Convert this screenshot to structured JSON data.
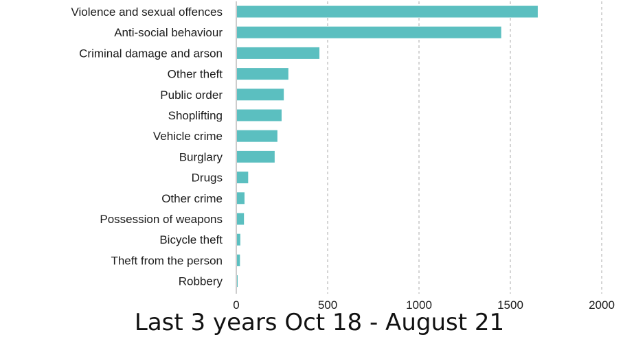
{
  "chart_data": {
    "type": "bar",
    "orientation": "horizontal",
    "categories": [
      "Violence and sexual offences",
      "Anti-social behaviour",
      "Criminal damage and arson",
      "Other theft",
      "Public order",
      "Shoplifting",
      "Vehicle crime",
      "Burglary",
      "Drugs",
      "Other crime",
      "Possession of weapons",
      "Bicycle theft",
      "Theft from the person",
      "Robbery"
    ],
    "values": [
      1650,
      1450,
      455,
      285,
      260,
      248,
      225,
      210,
      65,
      45,
      42,
      22,
      20,
      5
    ],
    "xlim": [
      0,
      2000
    ],
    "xticks": [
      "0",
      "500",
      "1000",
      "1500",
      "2000"
    ],
    "xtick_values": [
      0,
      500,
      1000,
      1500,
      2000
    ],
    "grid": "vertical dashed",
    "bar_color": "#5bbfc0"
  },
  "caption": "Last 3 years Oct 18 - August 21"
}
